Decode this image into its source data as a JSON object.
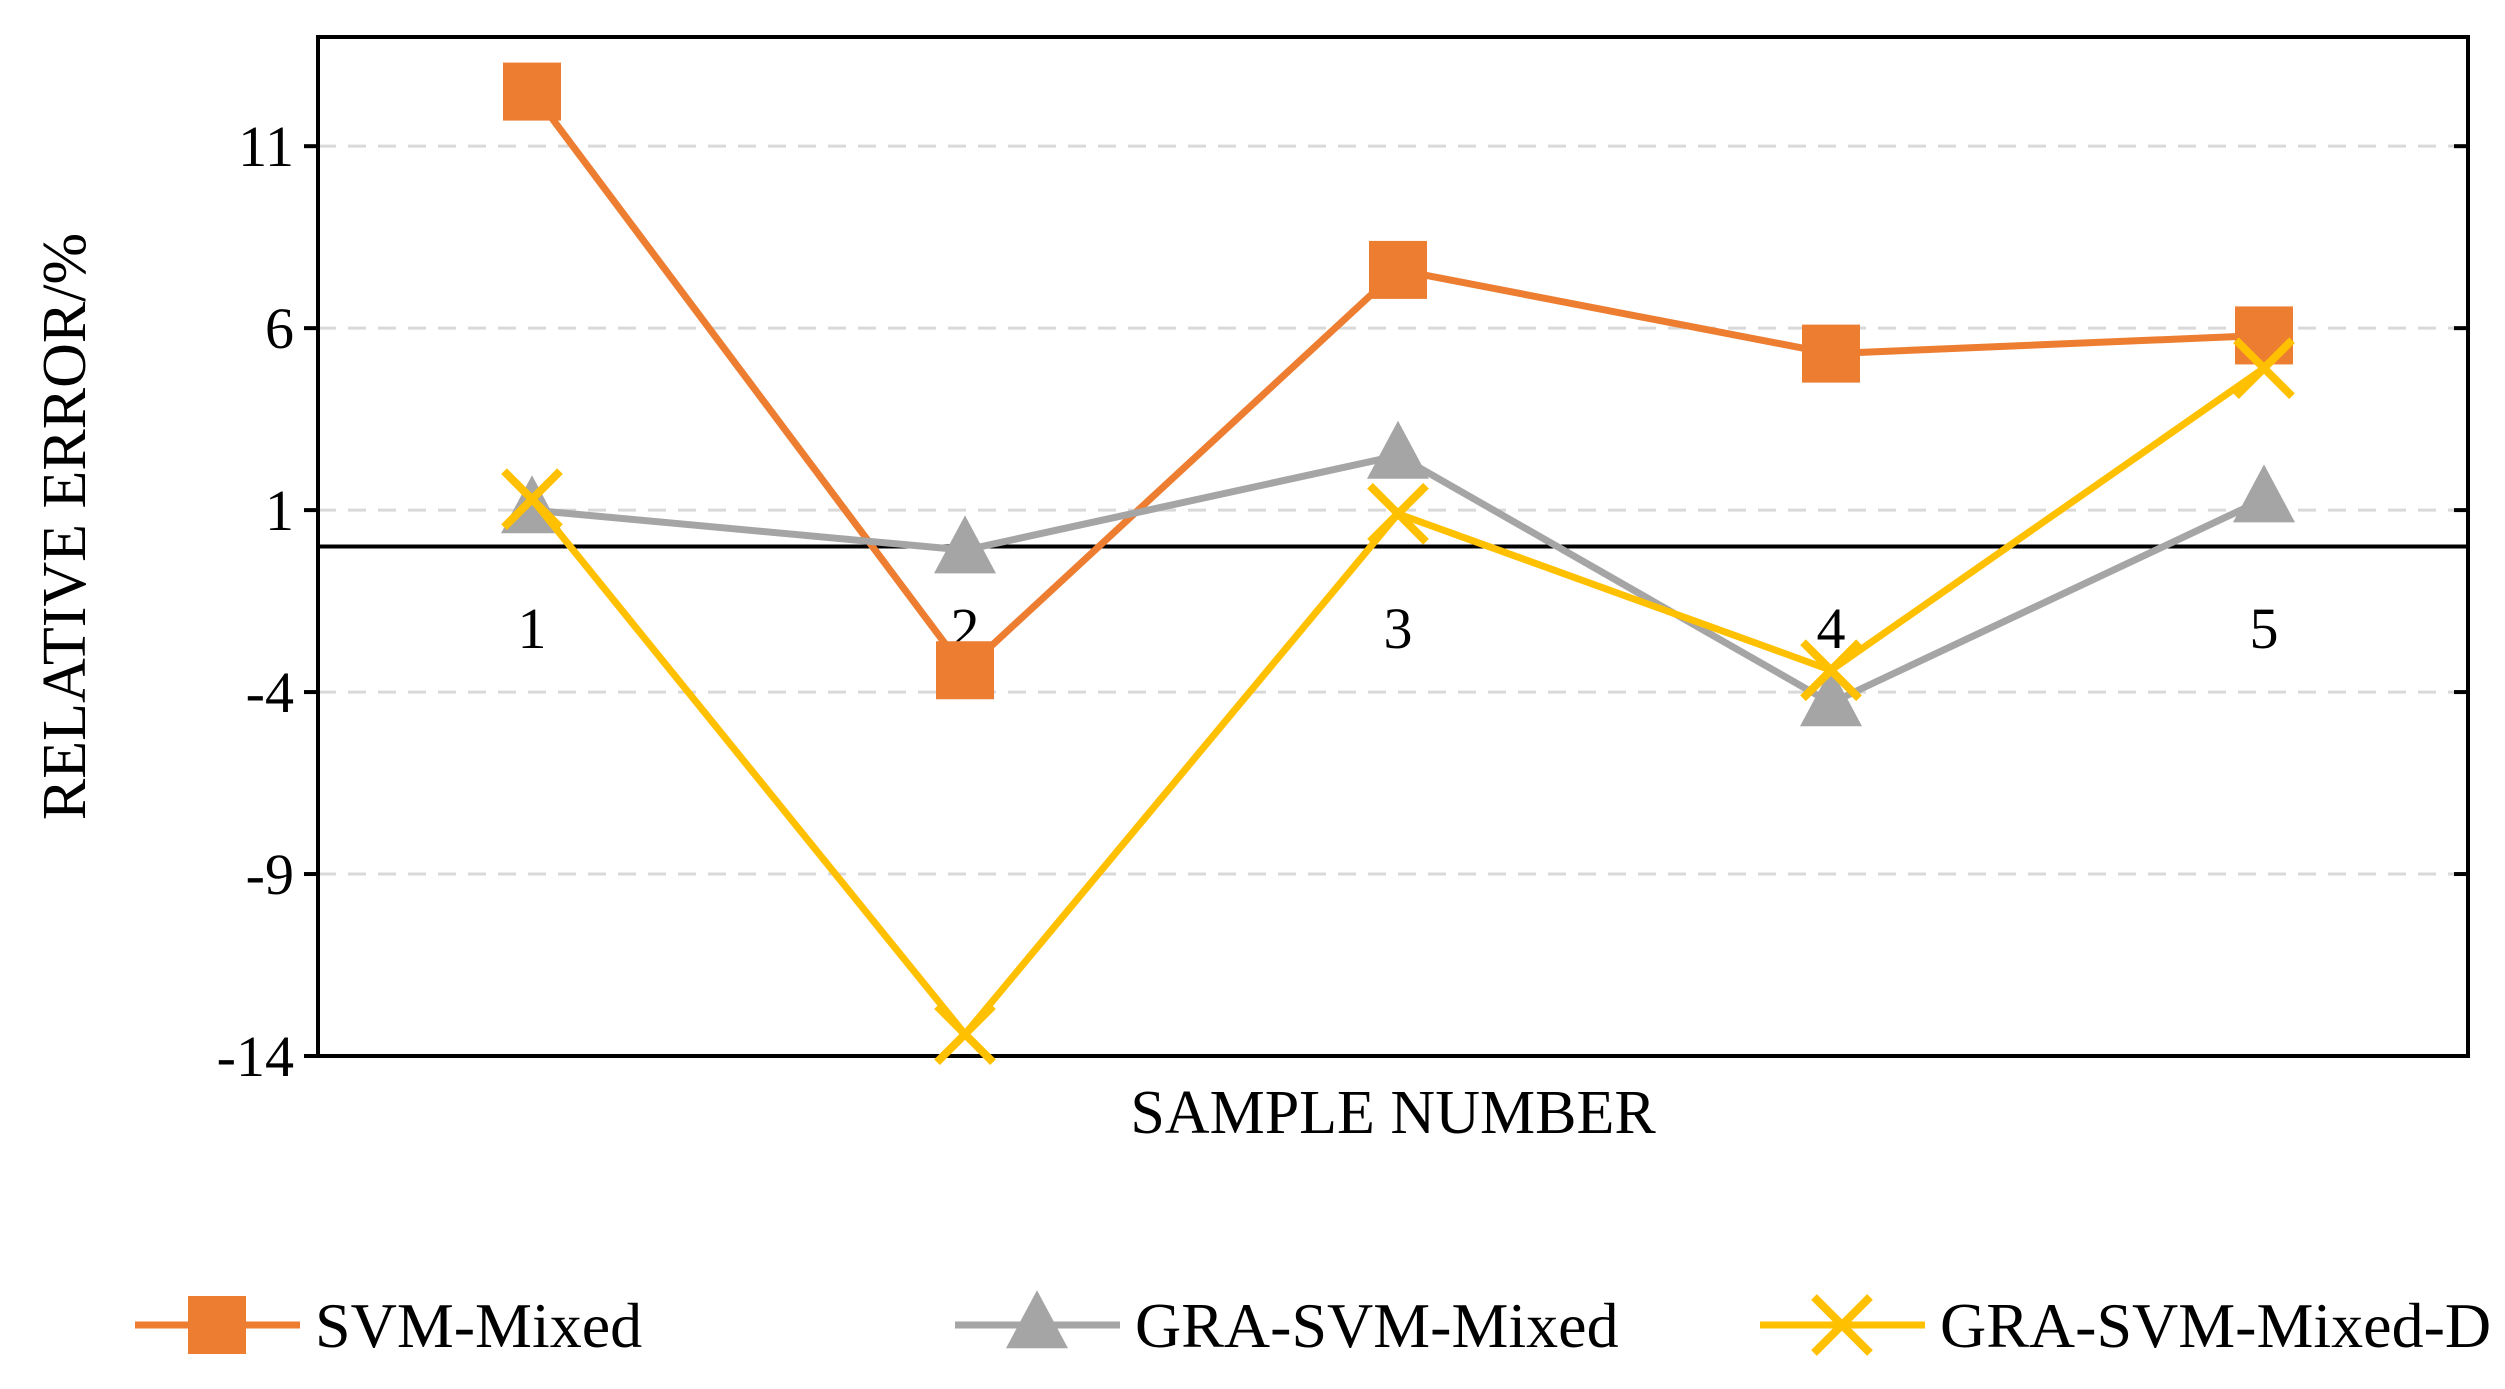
{
  "chart_data": {
    "type": "line",
    "title": "",
    "xlabel": "SAMPLE NUMBER",
    "ylabel": "RELATIVE ERROR/%",
    "categories": [
      "1",
      "2",
      "3",
      "4",
      "5"
    ],
    "ylim": [
      -14,
      14
    ],
    "yticks": [
      11,
      6,
      1,
      -4,
      -9,
      -14
    ],
    "ytick_labels": [
      "11",
      "6",
      "1",
      "-4",
      "-9",
      "-14"
    ],
    "grid": "horizontal dashed",
    "legend_position": "bottom",
    "series": [
      {
        "name": "SVM-Mixed",
        "marker": "square",
        "color": "#ED7D31",
        "values": [
          12.5,
          -3.4,
          7.6,
          5.3,
          5.8
        ]
      },
      {
        "name": "GRA-SVM-Mixed",
        "marker": "triangle",
        "color": "#A5A5A5",
        "values": [
          1.0,
          -0.1,
          2.5,
          -4.3,
          1.3
        ]
      },
      {
        "name": "GRA-SVM-Mixed-D",
        "marker": "x",
        "color": "#FFC000",
        "values": [
          1.3,
          -13.4,
          0.9,
          -3.4,
          4.9
        ]
      }
    ]
  }
}
